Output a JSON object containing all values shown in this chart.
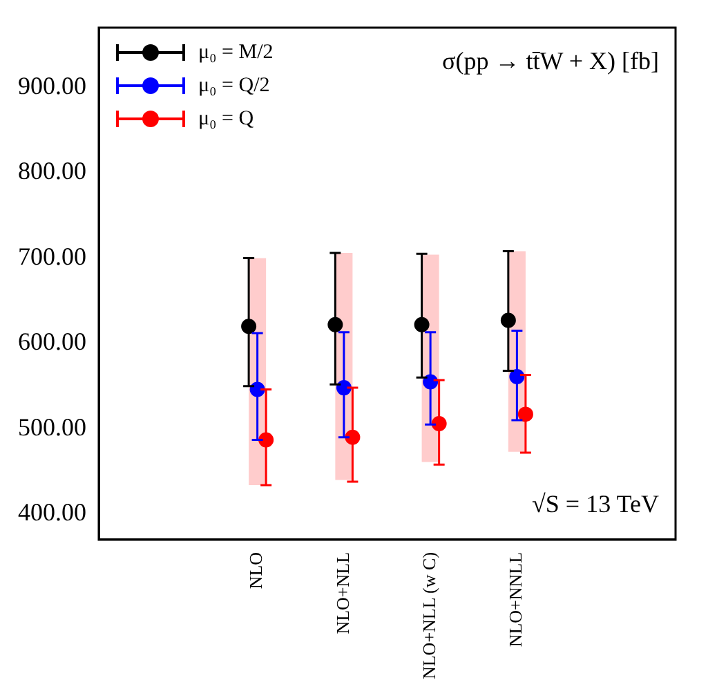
{
  "chart_data": {
    "type": "scatter",
    "categories": [
      "NLO",
      "NLO+NLL",
      "NLO+NLL (w C)",
      "NLO+NNLL"
    ],
    "series": [
      {
        "type": "bar",
        "color": "#ffcccc",
        "base": [
          434,
          440,
          461,
          473
        ],
        "values": [
          266,
          266,
          243,
          235
        ]
      },
      {
        "name": "μ₀ = M/2",
        "color": "#000000",
        "x": [
          "NLO",
          "NLO+NLL",
          "NLO+NLL (w C)",
          "NLO+NNLL"
        ],
        "values": [
          620,
          622,
          622,
          627
        ],
        "errors": [
          [
            550,
            700
          ],
          [
            552,
            706
          ],
          [
            560,
            705
          ],
          [
            568,
            708
          ]
        ]
      },
      {
        "name": "μ₀ = Q/2",
        "color": "#0000ff",
        "x": [
          "NLO",
          "NLO+NLL",
          "NLO+NLL (w C)",
          "NLO+NNLL"
        ],
        "values": [
          546,
          548,
          555,
          561
        ],
        "errors": [
          [
            487,
            612
          ],
          [
            490,
            613
          ],
          [
            505,
            613
          ],
          [
            510,
            615
          ]
        ]
      },
      {
        "name": "μ₀ = Q",
        "color": "#ff0000",
        "x": [
          "NLO",
          "NLO+NLL",
          "NLO+NLL (w C)",
          "NLO+NNLL"
        ],
        "values": [
          487,
          490,
          506,
          517
        ],
        "errors": [
          [
            434,
            546
          ],
          [
            438,
            548
          ],
          [
            458,
            557
          ],
          [
            472,
            563
          ]
        ]
      }
    ],
    "ylim": [
      370,
      970
    ],
    "yticks": [
      {
        "value": 400,
        "label": "400.00"
      },
      {
        "value": 500,
        "label": "500.00"
      },
      {
        "value": 600,
        "label": "600.00"
      },
      {
        "value": 700,
        "label": "700.00"
      },
      {
        "value": 800,
        "label": "800.00"
      },
      {
        "value": 900,
        "label": "900.00"
      }
    ],
    "grid": false,
    "legend": "top left",
    "marker": "circle",
    "annotations": [
      "σ(pp → tt̄W + X) [fb]",
      "√S = 13 TeV"
    ]
  }
}
